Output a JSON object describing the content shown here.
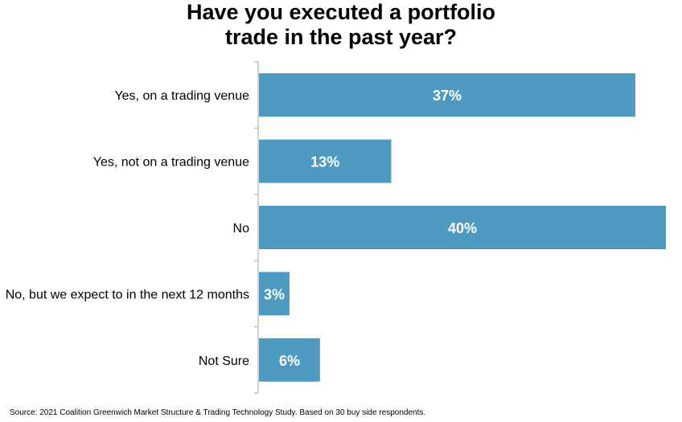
{
  "chart_data": {
    "type": "bar",
    "orientation": "horizontal",
    "title": "Have you executed a portfolio\ntrade in the past year?",
    "categories": [
      "Yes, on a trading venue",
      "Yes, not on a trading venue",
      "No",
      "No, but we expect to in the next 12 months",
      "Not Sure"
    ],
    "values": [
      37,
      13,
      40,
      3,
      6
    ],
    "data_labels": [
      "37%",
      "13%",
      "40%",
      "3%",
      "6%"
    ],
    "unit": "%",
    "xlim": [
      0,
      40
    ],
    "grid": false,
    "legend": "none",
    "bar_color": "#4f9ac1"
  },
  "source": "Source: 2021 Coalition Greenwich Market Structure & Trading Technology Study. Based on 30 buy side respondents."
}
